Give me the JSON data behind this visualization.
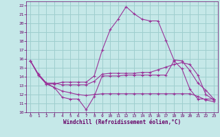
{
  "background_color": "#c5e8e8",
  "grid_color": "#9ecece",
  "line_color": "#993399",
  "xlabel": "Windchill (Refroidissement éolien,°C)",
  "xlabel_color": "#660066",
  "tick_color": "#660066",
  "xlim": [
    -0.5,
    23.5
  ],
  "ylim": [
    10,
    22.5
  ],
  "xticks": [
    0,
    1,
    2,
    3,
    4,
    5,
    6,
    7,
    8,
    9,
    10,
    11,
    12,
    13,
    14,
    15,
    16,
    17,
    18,
    19,
    20,
    21,
    22,
    23
  ],
  "yticks": [
    10,
    11,
    12,
    13,
    14,
    15,
    16,
    17,
    18,
    19,
    20,
    21,
    22
  ],
  "line1_x": [
    0,
    1,
    2,
    3,
    4,
    5,
    6,
    7,
    8,
    9,
    10,
    11,
    12,
    13,
    14,
    15,
    16,
    17,
    18,
    19,
    20,
    21,
    22,
    23
  ],
  "line1_y": [
    15.8,
    14.2,
    13.2,
    12.8,
    11.7,
    11.5,
    11.5,
    10.3,
    11.8,
    14.1,
    14.1,
    14.1,
    14.2,
    14.2,
    14.2,
    14.2,
    14.2,
    14.2,
    15.8,
    14.9,
    12.6,
    11.5,
    11.5,
    11.5
  ],
  "line2_x": [
    0,
    1,
    2,
    3,
    4,
    5,
    6,
    7,
    8,
    9,
    10,
    11,
    12,
    13,
    14,
    15,
    16,
    17,
    18,
    19,
    20,
    21,
    22,
    23
  ],
  "line2_y": [
    15.8,
    14.2,
    13.2,
    13.2,
    13.4,
    13.4,
    13.4,
    13.4,
    14.1,
    17.0,
    19.3,
    20.5,
    21.9,
    21.1,
    20.5,
    20.3,
    20.3,
    18.1,
    15.9,
    15.8,
    14.7,
    13.3,
    12.5,
    11.5
  ],
  "line3_x": [
    0,
    1,
    2,
    3,
    4,
    5,
    6,
    7,
    8,
    9,
    10,
    11,
    12,
    13,
    14,
    15,
    16,
    17,
    18,
    19,
    20,
    21,
    22,
    23
  ],
  "line3_y": [
    15.8,
    14.3,
    13.3,
    13.3,
    13.1,
    13.1,
    13.1,
    13.1,
    13.5,
    14.3,
    14.4,
    14.4,
    14.4,
    14.4,
    14.5,
    14.5,
    14.8,
    15.1,
    15.4,
    15.6,
    15.4,
    14.2,
    12.0,
    11.4
  ],
  "line4_x": [
    0,
    1,
    2,
    3,
    4,
    5,
    6,
    7,
    8,
    9,
    10,
    11,
    12,
    13,
    14,
    15,
    16,
    17,
    18,
    19,
    20,
    21,
    22,
    23
  ],
  "line4_y": [
    15.8,
    14.3,
    13.3,
    12.8,
    12.4,
    12.2,
    12.0,
    11.9,
    12.0,
    12.1,
    12.1,
    12.1,
    12.1,
    12.1,
    12.1,
    12.1,
    12.1,
    12.1,
    12.1,
    12.1,
    12.1,
    11.8,
    11.4,
    11.2
  ]
}
